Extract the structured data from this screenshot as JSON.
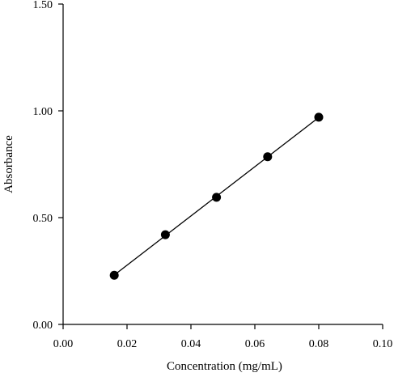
{
  "chart_data": {
    "type": "scatter",
    "title": "",
    "xlabel": "Concentration (mg/mL)",
    "ylabel": "Absorbance",
    "xlim": [
      0.0,
      0.1
    ],
    "ylim": [
      0.0,
      1.5
    ],
    "x_ticks": [
      "0.00",
      "0.02",
      "0.04",
      "0.06",
      "0.08",
      "0.10"
    ],
    "y_ticks": [
      "0.00",
      "0.50",
      "1.00",
      "1.50"
    ],
    "grid": false,
    "legend": "none",
    "series": [
      {
        "x": [
          0.016,
          0.032,
          0.048,
          0.064,
          0.08
        ],
        "y": [
          0.23,
          0.42,
          0.595,
          0.785,
          0.97
        ],
        "marker": "filled-circle",
        "line": "fit",
        "color": "#000000"
      }
    ]
  }
}
